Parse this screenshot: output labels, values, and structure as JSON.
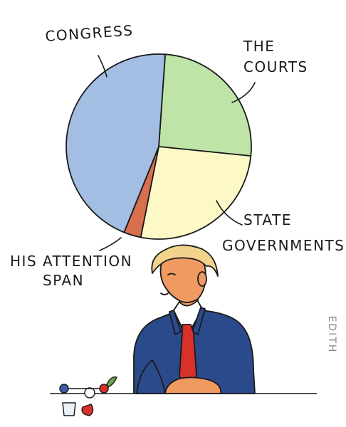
{
  "chart_data": {
    "type": "pie",
    "categories": [
      "Congress",
      "The Courts",
      "State Governments",
      "His Attention Span"
    ],
    "values": [
      45,
      25.5,
      26.5,
      3
    ],
    "colors": [
      "#a3bde3",
      "#bfe4a7",
      "#fdf9c7",
      "#d86f4f"
    ]
  },
  "labels": {
    "congress": "CONGRESS",
    "courts_line1": "THE",
    "courts_line2": "COURTS",
    "state_line1": "STATE",
    "state_line2": "GOVERNMENTS",
    "attention_line1": "HIS ATTENTION",
    "attention_line2": "SPAN"
  },
  "signature": "EDITH",
  "colors": {
    "suit": "#2b4a8c",
    "tie": "#d8312a",
    "hair": "#f3d28c",
    "skin": "#f09a62"
  }
}
